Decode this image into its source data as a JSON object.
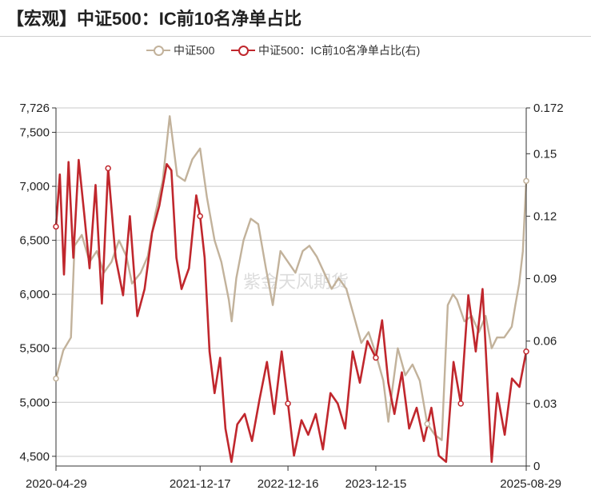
{
  "title": "【宏观】中证500：IC前10名净单占比",
  "watermark": "紫金天风期货",
  "legend": [
    {
      "label": "中证500",
      "color": "#c2b29b"
    },
    {
      "label": "中证500：IC前10名净单占比(右)",
      "color": "#c0272d"
    }
  ],
  "chart_data": {
    "type": "line",
    "x_tick_labels": [
      "2020-04-29",
      "2021-12-17",
      "2022-12-16",
      "2023-12-15",
      "2025-08-29"
    ],
    "left_axis": {
      "ticks": [
        "7,726",
        "7,500",
        "7,000",
        "6,500",
        "6,000",
        "5,500",
        "5,000",
        "4,500"
      ],
      "range": [
        4410,
        7726
      ]
    },
    "right_axis": {
      "ticks": [
        "0.172",
        "0.15",
        "0.12",
        "0.09",
        "0.06",
        "0.03",
        "0"
      ],
      "range": [
        0,
        0.172
      ]
    },
    "series": [
      {
        "name": "中证500",
        "axis": "left",
        "color": "#c2b29b",
        "x": [
          "2020-04-29",
          "2020-05-29",
          "2020-06-30",
          "2020-07-15",
          "2020-08-14",
          "2020-09-15",
          "2020-10-15",
          "2020-11-13",
          "2020-12-15",
          "2021-01-15",
          "2021-02-15",
          "2021-03-10",
          "2021-04-15",
          "2021-05-14",
          "2021-06-15",
          "2021-07-15",
          "2021-08-13",
          "2021-09-13",
          "2021-10-15",
          "2021-11-15",
          "2021-12-17",
          "2022-01-14",
          "2022-02-15",
          "2022-03-15",
          "2022-04-15",
          "2022-04-27",
          "2022-05-16",
          "2022-06-15",
          "2022-07-15",
          "2022-08-15",
          "2022-09-15",
          "2022-10-14",
          "2022-11-15",
          "2022-12-16",
          "2023-01-16",
          "2023-02-15",
          "2023-03-15",
          "2023-04-14",
          "2023-05-15",
          "2023-06-15",
          "2023-07-14",
          "2023-08-15",
          "2023-09-15",
          "2023-10-16",
          "2023-11-15",
          "2023-12-15",
          "2024-01-15",
          "2024-02-05",
          "2024-02-20",
          "2024-03-15",
          "2024-04-15",
          "2024-05-15",
          "2024-06-14",
          "2024-07-15",
          "2024-08-15",
          "2024-09-13",
          "2024-10-08",
          "2024-10-30",
          "2024-11-15",
          "2024-12-16",
          "2025-01-15",
          "2025-02-14",
          "2025-03-14",
          "2025-04-08",
          "2025-04-30",
          "2025-05-30",
          "2025-06-30",
          "2025-07-15",
          "2025-07-31",
          "2025-08-15",
          "2025-08-29"
        ],
        "values": [
          5220,
          5480,
          5600,
          6450,
          6550,
          6300,
          6400,
          6200,
          6300,
          6500,
          6350,
          6100,
          6200,
          6350,
          6750,
          7050,
          7650,
          7100,
          7050,
          7250,
          7350,
          6900,
          6500,
          6300,
          5950,
          5750,
          6150,
          6500,
          6700,
          6650,
          6250,
          5900,
          6400,
          6300,
          6200,
          6400,
          6450,
          6350,
          6200,
          6050,
          6150,
          6050,
          5800,
          5550,
          5650,
          5450,
          5200,
          4820,
          5100,
          5500,
          5250,
          5350,
          5200,
          4800,
          4700,
          4650,
          5900,
          6000,
          5950,
          5750,
          5800,
          5650,
          5800,
          5500,
          5600,
          5600,
          5700,
          5900,
          6100,
          6400,
          7050
        ]
      },
      {
        "name": "中证500：IC前10名净单占比(右)",
        "axis": "right",
        "color": "#c0272d",
        "x": [
          "2020-04-29",
          "2020-05-15",
          "2020-06-01",
          "2020-06-20",
          "2020-07-10",
          "2020-08-01",
          "2020-08-25",
          "2020-09-15",
          "2020-10-10",
          "2020-11-05",
          "2020-12-01",
          "2021-01-01",
          "2021-02-01",
          "2021-03-01",
          "2021-04-01",
          "2021-05-01",
          "2021-06-01",
          "2021-07-01",
          "2021-08-01",
          "2021-08-20",
          "2021-09-10",
          "2021-10-01",
          "2021-11-01",
          "2021-12-01",
          "2021-12-17",
          "2022-01-05",
          "2022-01-25",
          "2022-02-15",
          "2022-03-10",
          "2022-04-01",
          "2022-04-26",
          "2022-05-20",
          "2022-06-20",
          "2022-07-20",
          "2022-08-20",
          "2022-09-20",
          "2022-10-20",
          "2022-11-20",
          "2022-12-16",
          "2023-01-10",
          "2023-02-10",
          "2023-03-10",
          "2023-04-10",
          "2023-05-10",
          "2023-06-10",
          "2023-07-10",
          "2023-08-10",
          "2023-09-10",
          "2023-10-10",
          "2023-11-10",
          "2023-12-15",
          "2024-01-10",
          "2024-02-05",
          "2024-03-01",
          "2024-04-01",
          "2024-05-01",
          "2024-06-01",
          "2024-07-01",
          "2024-08-01",
          "2024-09-01",
          "2024-10-01",
          "2024-11-01",
          "2024-12-01",
          "2025-01-01",
          "2025-02-01",
          "2025-03-01",
          "2025-04-08",
          "2025-05-01",
          "2025-06-01",
          "2025-07-01",
          "2025-08-01",
          "2025-08-29"
        ],
        "values": [
          0.115,
          0.14,
          0.092,
          0.146,
          0.1,
          0.147,
          0.12,
          0.095,
          0.135,
          0.078,
          0.143,
          0.1,
          0.082,
          0.12,
          0.072,
          0.085,
          0.112,
          0.125,
          0.145,
          0.142,
          0.1,
          0.085,
          0.095,
          0.13,
          0.12,
          0.1,
          0.055,
          0.035,
          0.052,
          0.018,
          0.002,
          0.02,
          0.025,
          0.012,
          0.032,
          0.05,
          0.025,
          0.055,
          0.03,
          0.005,
          0.022,
          0.015,
          0.025,
          0.008,
          0.035,
          0.03,
          0.018,
          0.055,
          0.04,
          0.06,
          0.052,
          0.07,
          0.04,
          0.025,
          0.045,
          0.018,
          0.028,
          0.012,
          0.028,
          0.005,
          0.002,
          0.05,
          0.03,
          0.082,
          0.055,
          0.085,
          0.002,
          0.035,
          0.015,
          0.042,
          0.038,
          0.055
        ]
      }
    ],
    "markers": {
      "中证500": [
        "2020-04-29",
        "2024-07-15",
        "2025-08-29"
      ],
      "中证500：IC前10名净单占比(右)": [
        "2020-04-29",
        "2020-12-01",
        "2021-12-17",
        "2022-12-16",
        "2023-12-15",
        "2024-12-01",
        "2025-08-29"
      ]
    }
  }
}
